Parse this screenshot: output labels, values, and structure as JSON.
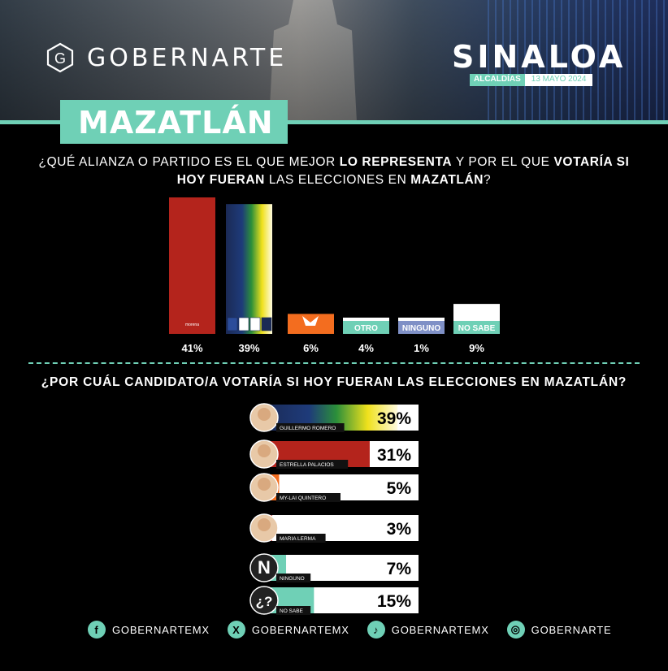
{
  "brand": {
    "name": "GOBERNARTE"
  },
  "region": {
    "state": "SINALOA",
    "section": "ALCALDÍAS",
    "date": "13 MAYO 2024"
  },
  "city": "MAZATLÁN",
  "question1": {
    "p1": "¿QUÉ ALIANZA O PARTIDO ES EL QUE MEJOR ",
    "b1": "LO REPRESENTA",
    "p2": " Y POR EL QUE ",
    "b2": "VOTARÍA SI HOY FUERAN",
    "p3": " LAS ELECCIONES EN ",
    "b3": "MAZATLÁN",
    "p4": "?"
  },
  "question2": "¿POR CUÁL CANDIDATO/A VOTARÍA SI HOY FUERAN LAS ELECCIONES EN MAZATLÁN?",
  "chart_data": [
    {
      "type": "bar",
      "categories": [
        "morena",
        "PAN PRI PRD PAS",
        "MOVIMIENTO CIUDADANO",
        "OTRO",
        "NINGUNO",
        "NO SABE"
      ],
      "values": [
        41,
        39,
        6,
        4,
        1,
        9
      ],
      "value_labels": [
        "41%",
        "39%",
        "6%",
        "4%",
        "1%",
        "9%"
      ],
      "ylim": [
        0,
        41
      ],
      "colors": [
        "#b4241c",
        "gradient-navy-green-yellow",
        "#f36d1f",
        "#6fd0b6",
        "#7f90c6",
        "#6fd0b6"
      ],
      "bar_texts": [
        "morena",
        "",
        "",
        "OTRO",
        "NINGUNO",
        "NO SABE"
      ],
      "grid": false
    },
    {
      "type": "bar",
      "orientation": "horizontal",
      "categories": [
        "GUILLERMO ROMERO",
        "ESTRELLA PALACIOS",
        "MY-LAI QUINTERO",
        "MARIA LERMA",
        "NINGUNO",
        "NO SABE"
      ],
      "values": [
        39,
        31,
        5,
        3,
        7,
        15
      ],
      "value_labels": [
        "39%",
        "31%",
        "5%",
        "3%",
        "7%",
        "15%"
      ],
      "colors": [
        "gradient-navy-green-yellow",
        "#b4241c",
        "#f36d1f",
        "#b4241c",
        "#6fd0b6",
        "#6fd0b6"
      ],
      "avatar_glyphs": [
        "",
        "",
        "",
        "",
        "N",
        "¿?"
      ],
      "grid": false
    }
  ],
  "social": [
    {
      "icon": "facebook-icon",
      "glyph": "f",
      "handle": "GOBERNARTEMX"
    },
    {
      "icon": "x-icon",
      "glyph": "X",
      "handle": "GOBERNARTEMX"
    },
    {
      "icon": "tiktok-icon",
      "glyph": "♪",
      "handle": "GOBERNARTEMX"
    },
    {
      "icon": "instagram-icon",
      "glyph": "◎",
      "handle": "GOBERNARTE"
    }
  ],
  "colors": {
    "accent": "#6fd0b6",
    "morena": "#b4241c",
    "mc": "#f36d1f",
    "background": "#000000"
  }
}
